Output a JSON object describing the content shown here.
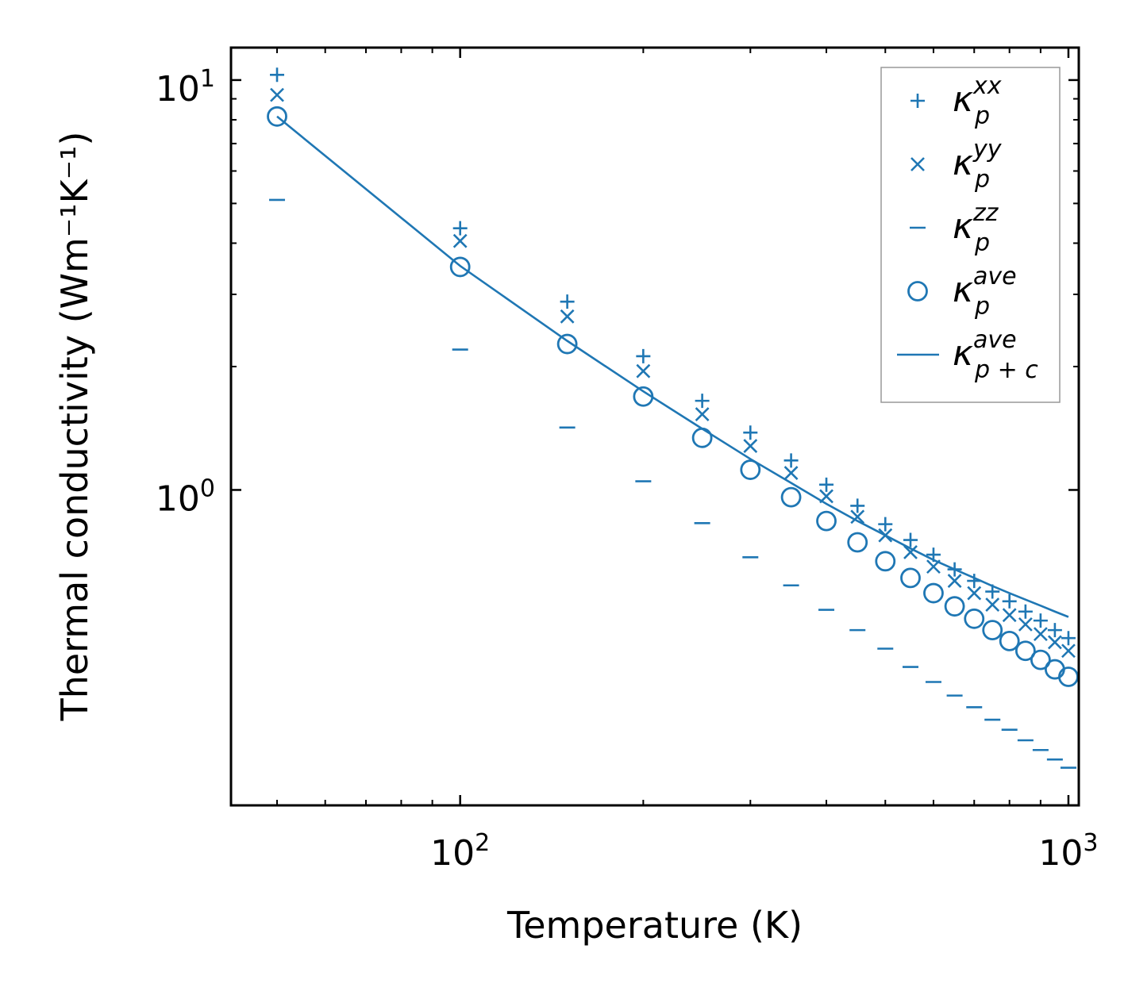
{
  "chart_data": {
    "type": "scatter",
    "title": "",
    "xlabel": "Temperature (K)",
    "ylabel": "Thermal conductivity (Wm⁻¹K⁻¹)",
    "xscale": "log",
    "yscale": "log",
    "xlim": [
      42,
      1040
    ],
    "ylim": [
      0.17,
      12
    ],
    "x_ticks": [
      {
        "value": 100,
        "base": "10",
        "exp": "2"
      },
      {
        "value": 1000,
        "base": "10",
        "exp": "3"
      }
    ],
    "y_ticks": [
      {
        "value": 1,
        "base": "10",
        "exp": "0"
      },
      {
        "value": 10,
        "base": "10",
        "exp": "1"
      }
    ],
    "legend_position": "top-right",
    "color": "#1f77b4",
    "series": [
      {
        "name": "kappa_p_xx",
        "label_base": "κ",
        "label_sub": "p",
        "label_sup": "xx",
        "marker": "plus",
        "x": [
          50,
          100,
          150,
          200,
          250,
          300,
          350,
          400,
          450,
          500,
          550,
          600,
          650,
          700,
          750,
          800,
          850,
          900,
          950,
          1000
        ],
        "y": [
          10.3,
          4.35,
          2.88,
          2.12,
          1.65,
          1.38,
          1.18,
          1.03,
          0.915,
          0.825,
          0.755,
          0.695,
          0.64,
          0.6,
          0.565,
          0.535,
          0.505,
          0.48,
          0.455,
          0.435
        ]
      },
      {
        "name": "kappa_p_yy",
        "label_base": "κ",
        "label_sub": "p",
        "label_sup": "yy",
        "marker": "x",
        "x": [
          50,
          100,
          150,
          200,
          250,
          300,
          350,
          400,
          450,
          500,
          550,
          600,
          650,
          700,
          750,
          800,
          850,
          900,
          950,
          1000
        ],
        "y": [
          9.2,
          4.05,
          2.65,
          1.95,
          1.53,
          1.28,
          1.1,
          0.965,
          0.86,
          0.775,
          0.705,
          0.65,
          0.6,
          0.56,
          0.525,
          0.495,
          0.47,
          0.445,
          0.425,
          0.405
        ]
      },
      {
        "name": "kappa_p_zz",
        "label_base": "κ",
        "label_sub": "p",
        "label_sup": "zz",
        "marker": "hline",
        "x": [
          50,
          100,
          150,
          200,
          250,
          300,
          350,
          400,
          450,
          500,
          550,
          600,
          650,
          700,
          750,
          800,
          850,
          900,
          950,
          1000
        ],
        "y": [
          5.1,
          2.2,
          1.42,
          1.05,
          0.83,
          0.685,
          0.585,
          0.51,
          0.455,
          0.41,
          0.37,
          0.34,
          0.315,
          0.295,
          0.275,
          0.26,
          0.245,
          0.232,
          0.22,
          0.21
        ]
      },
      {
        "name": "kappa_p_ave",
        "label_base": "κ",
        "label_sub": "p",
        "label_sup": "ave",
        "marker": "circle",
        "x": [
          50,
          100,
          150,
          200,
          250,
          300,
          350,
          400,
          450,
          500,
          550,
          600,
          650,
          700,
          750,
          800,
          850,
          900,
          950,
          1000
        ],
        "y": [
          8.15,
          3.5,
          2.27,
          1.69,
          1.34,
          1.12,
          0.96,
          0.84,
          0.745,
          0.67,
          0.61,
          0.56,
          0.52,
          0.485,
          0.455,
          0.428,
          0.405,
          0.385,
          0.365,
          0.35
        ]
      },
      {
        "name": "kappa_p+c_ave",
        "label_base": "κ",
        "label_sub": "p + c",
        "label_sup": "ave",
        "marker": "line",
        "x": [
          50,
          100,
          150,
          200,
          250,
          300,
          350,
          400,
          450,
          500,
          550,
          600,
          650,
          700,
          750,
          800,
          850,
          900,
          950,
          1000
        ],
        "y": [
          8.15,
          3.52,
          2.31,
          1.74,
          1.41,
          1.19,
          1.04,
          0.925,
          0.84,
          0.775,
          0.72,
          0.675,
          0.64,
          0.61,
          0.583,
          0.56,
          0.54,
          0.522,
          0.505,
          0.49
        ]
      }
    ]
  }
}
